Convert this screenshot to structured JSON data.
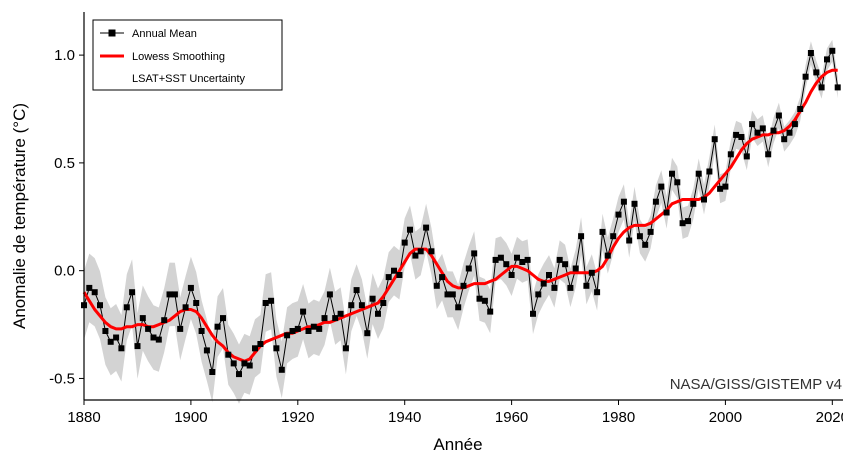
{
  "chart_data": {
    "type": "line",
    "xlabel": "Année",
    "ylabel": "Anomalie de température (°C)",
    "credit": "NASA/GISS/GISTEMP v4",
    "xlim": [
      1880,
      2022
    ],
    "ylim": [
      -0.6,
      1.2
    ],
    "xticks": [
      1880,
      1900,
      1920,
      1940,
      1960,
      1980,
      2000,
      2020
    ],
    "yticks": [
      -0.5,
      0.0,
      0.5,
      1.0
    ],
    "ytick_labels": [
      "-0.5",
      "0.0",
      "0.5",
      "1.0"
    ],
    "legend": {
      "placement": "top-left",
      "entries": [
        "Annual Mean",
        "Lowess Smoothing",
        "LSAT+SST Uncertainty"
      ]
    },
    "colors": {
      "annual": "#000000",
      "lowess": "#ff0000",
      "uncertainty": "#d3d3d3"
    },
    "x": [
      1880,
      1881,
      1882,
      1883,
      1884,
      1885,
      1886,
      1887,
      1888,
      1889,
      1890,
      1891,
      1892,
      1893,
      1894,
      1895,
      1896,
      1897,
      1898,
      1899,
      1900,
      1901,
      1902,
      1903,
      1904,
      1905,
      1906,
      1907,
      1908,
      1909,
      1910,
      1911,
      1912,
      1913,
      1914,
      1915,
      1916,
      1917,
      1918,
      1919,
      1920,
      1921,
      1922,
      1923,
      1924,
      1925,
      1926,
      1927,
      1928,
      1929,
      1930,
      1931,
      1932,
      1933,
      1934,
      1935,
      1936,
      1937,
      1938,
      1939,
      1940,
      1941,
      1942,
      1943,
      1944,
      1945,
      1946,
      1947,
      1948,
      1949,
      1950,
      1951,
      1952,
      1953,
      1954,
      1955,
      1956,
      1957,
      1958,
      1959,
      1960,
      1961,
      1962,
      1963,
      1964,
      1965,
      1966,
      1967,
      1968,
      1969,
      1970,
      1971,
      1972,
      1973,
      1974,
      1975,
      1976,
      1977,
      1978,
      1979,
      1980,
      1981,
      1982,
      1983,
      1984,
      1985,
      1986,
      1987,
      1988,
      1989,
      1990,
      1991,
      1992,
      1993,
      1994,
      1995,
      1996,
      1997,
      1998,
      1999,
      2000,
      2001,
      2002,
      2003,
      2004,
      2005,
      2006,
      2007,
      2008,
      2009,
      2010,
      2011,
      2012,
      2013,
      2014,
      2015,
      2016,
      2017,
      2018,
      2019,
      2020,
      2021
    ],
    "series": [
      {
        "name": "Annual Mean",
        "values": [
          -0.16,
          -0.08,
          -0.1,
          -0.16,
          -0.28,
          -0.33,
          -0.31,
          -0.36,
          -0.17,
          -0.1,
          -0.35,
          -0.22,
          -0.27,
          -0.31,
          -0.32,
          -0.23,
          -0.11,
          -0.11,
          -0.27,
          -0.17,
          -0.08,
          -0.15,
          -0.28,
          -0.37,
          -0.47,
          -0.26,
          -0.22,
          -0.39,
          -0.43,
          -0.48,
          -0.43,
          -0.44,
          -0.36,
          -0.34,
          -0.15,
          -0.14,
          -0.36,
          -0.46,
          -0.3,
          -0.28,
          -0.27,
          -0.19,
          -0.28,
          -0.26,
          -0.27,
          -0.22,
          -0.11,
          -0.22,
          -0.2,
          -0.36,
          -0.16,
          -0.09,
          -0.16,
          -0.29,
          -0.13,
          -0.2,
          -0.15,
          -0.03,
          -0.0,
          -0.02,
          0.13,
          0.19,
          0.07,
          0.09,
          0.2,
          0.09,
          -0.07,
          -0.03,
          -0.11,
          -0.11,
          -0.17,
          -0.07,
          0.01,
          0.08,
          -0.13,
          -0.14,
          -0.19,
          0.05,
          0.06,
          0.03,
          -0.02,
          0.06,
          0.04,
          0.05,
          -0.2,
          -0.11,
          -0.06,
          -0.02,
          -0.08,
          0.05,
          0.03,
          -0.08,
          0.01,
          0.16,
          -0.07,
          -0.01,
          -0.1,
          0.18,
          0.07,
          0.16,
          0.26,
          0.32,
          0.14,
          0.31,
          0.16,
          0.12,
          0.18,
          0.32,
          0.39,
          0.27,
          0.45,
          0.41,
          0.22,
          0.23,
          0.31,
          0.45,
          0.33,
          0.46,
          0.61,
          0.38,
          0.39,
          0.54,
          0.63,
          0.62,
          0.53,
          0.68,
          0.64,
          0.66,
          0.54,
          0.65,
          0.72,
          0.61,
          0.64,
          0.68,
          0.75,
          0.9,
          1.01,
          0.92,
          0.85,
          0.98,
          1.02,
          0.85
        ]
      },
      {
        "name": "Lowess Smoothing",
        "values": [
          -0.1,
          -0.14,
          -0.18,
          -0.21,
          -0.24,
          -0.26,
          -0.27,
          -0.27,
          -0.26,
          -0.26,
          -0.25,
          -0.25,
          -0.26,
          -0.26,
          -0.25,
          -0.24,
          -0.23,
          -0.21,
          -0.19,
          -0.18,
          -0.18,
          -0.19,
          -0.22,
          -0.26,
          -0.3,
          -0.33,
          -0.35,
          -0.38,
          -0.4,
          -0.41,
          -0.42,
          -0.41,
          -0.38,
          -0.35,
          -0.33,
          -0.32,
          -0.31,
          -0.3,
          -0.29,
          -0.29,
          -0.28,
          -0.27,
          -0.26,
          -0.26,
          -0.25,
          -0.24,
          -0.24,
          -0.23,
          -0.22,
          -0.21,
          -0.2,
          -0.19,
          -0.18,
          -0.17,
          -0.16,
          -0.15,
          -0.12,
          -0.08,
          -0.04,
          0.0,
          0.04,
          0.08,
          0.1,
          0.1,
          0.1,
          0.07,
          0.03,
          -0.01,
          -0.05,
          -0.07,
          -0.08,
          -0.08,
          -0.07,
          -0.06,
          -0.06,
          -0.06,
          -0.05,
          -0.04,
          -0.02,
          0.0,
          0.02,
          0.02,
          0.01,
          0.0,
          -0.02,
          -0.04,
          -0.05,
          -0.05,
          -0.04,
          -0.03,
          -0.02,
          -0.01,
          -0.01,
          -0.01,
          -0.01,
          -0.01,
          0.0,
          0.02,
          0.06,
          0.11,
          0.15,
          0.18,
          0.2,
          0.21,
          0.21,
          0.21,
          0.22,
          0.24,
          0.26,
          0.28,
          0.31,
          0.32,
          0.33,
          0.33,
          0.33,
          0.33,
          0.34,
          0.36,
          0.39,
          0.42,
          0.45,
          0.48,
          0.52,
          0.56,
          0.59,
          0.61,
          0.62,
          0.63,
          0.63,
          0.64,
          0.64,
          0.65,
          0.67,
          0.7,
          0.74,
          0.78,
          0.83,
          0.87,
          0.9,
          0.92,
          0.93,
          0.93
        ]
      }
    ]
  }
}
